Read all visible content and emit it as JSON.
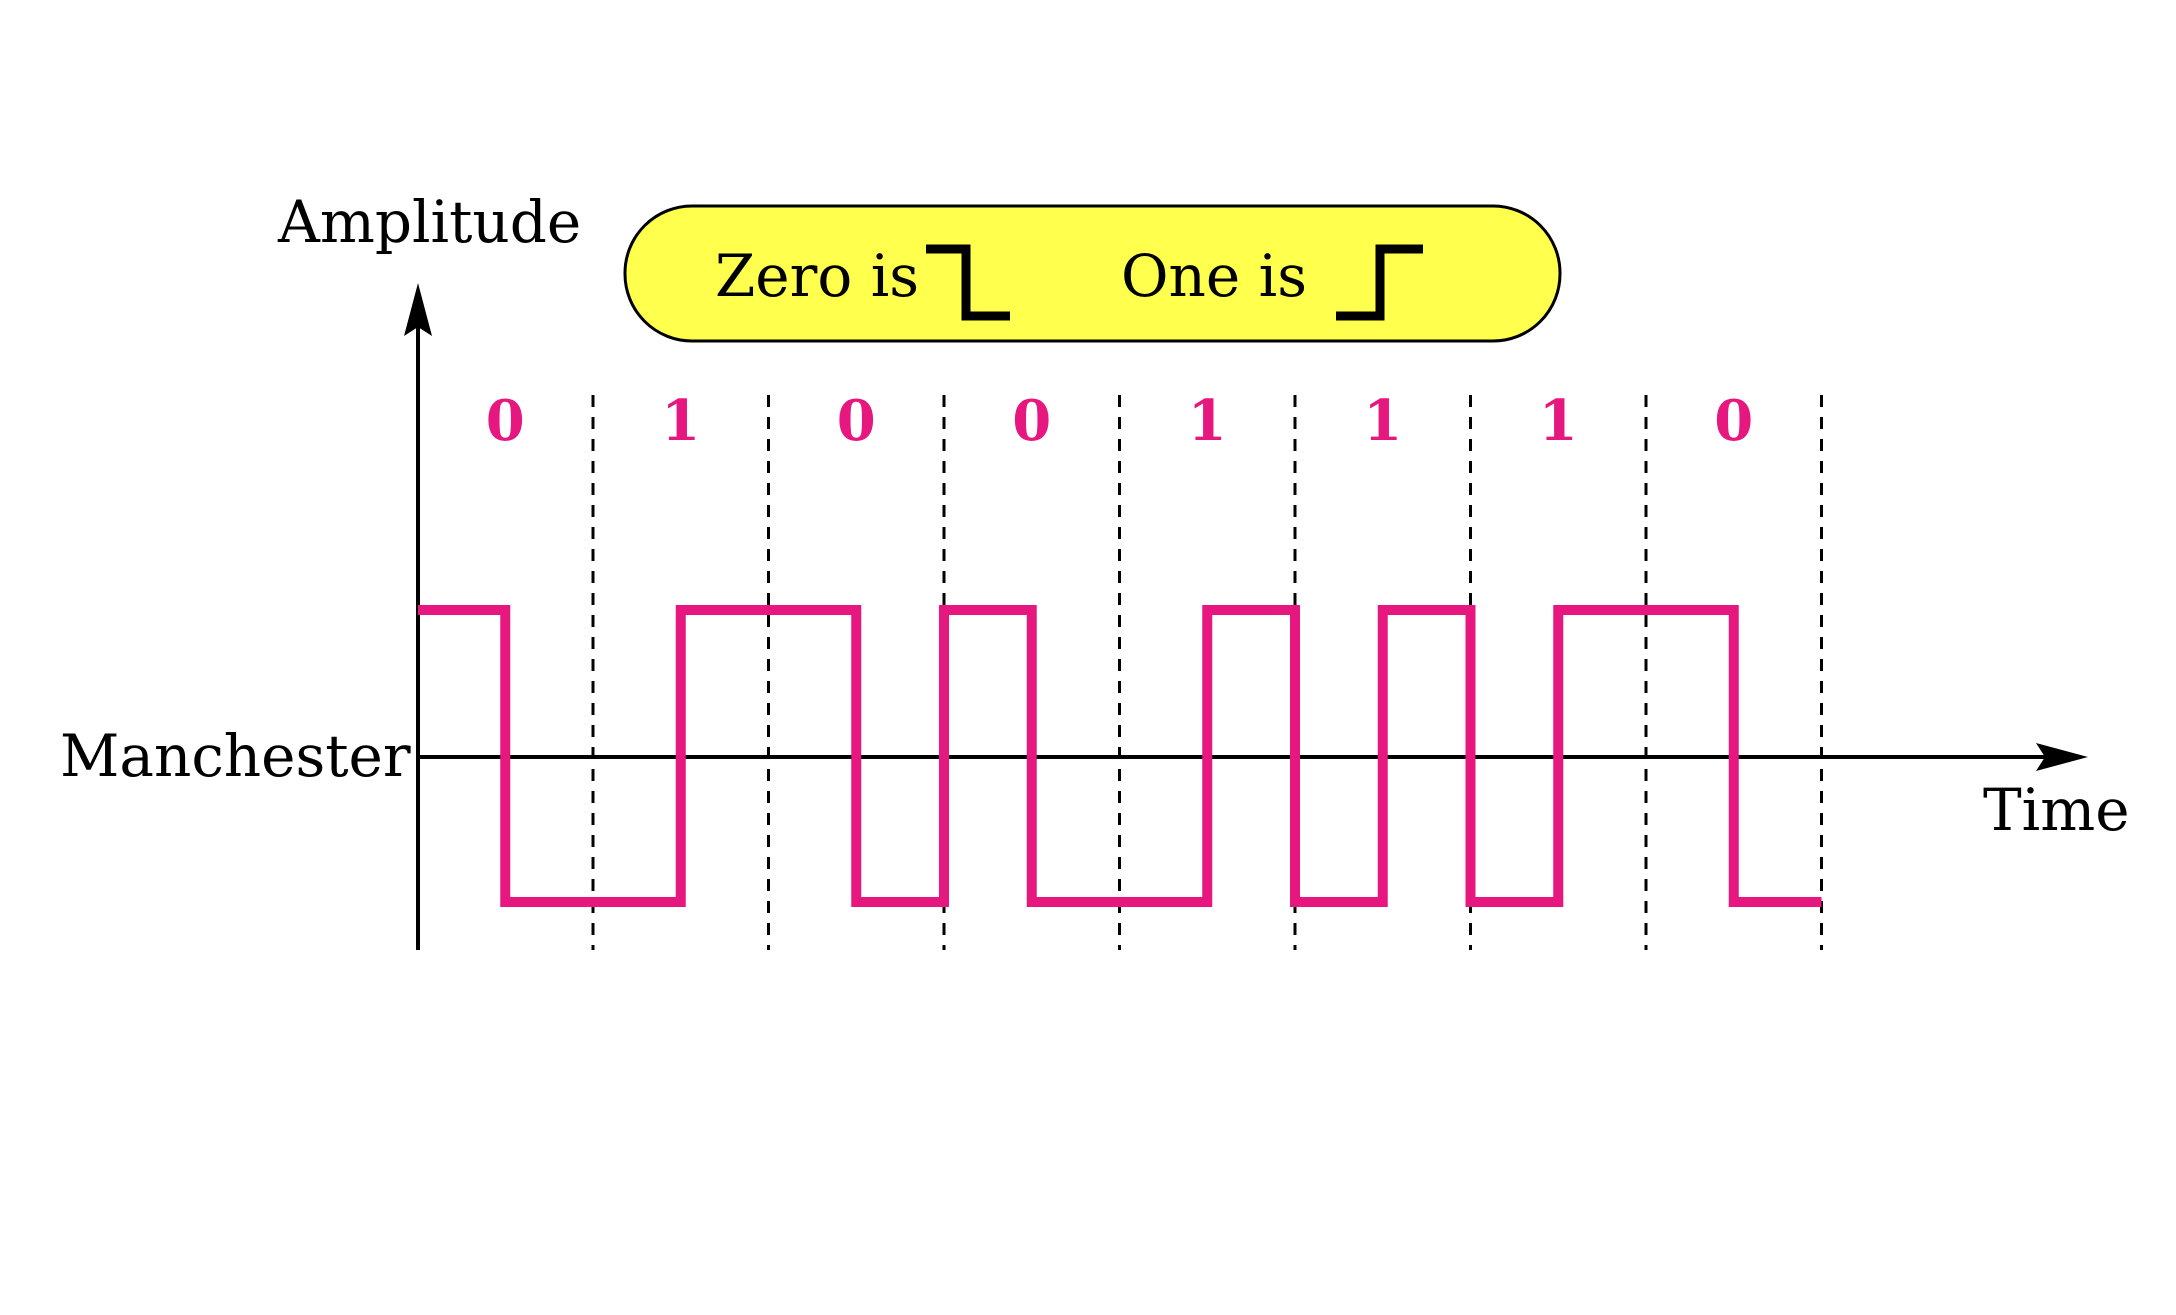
{
  "axis_labels": {
    "y": "Amplitude",
    "x": "Time",
    "row": "Manchester"
  },
  "legend": {
    "zero_text": "Zero is",
    "one_text": "One is",
    "zero_symbol": "high-to-low-transition-icon",
    "one_symbol": "low-to-high-transition-icon",
    "fill_color": "#ffff4d"
  },
  "encoding": {
    "name": "Manchester",
    "bits": [
      "0",
      "1",
      "0",
      "0",
      "1",
      "1",
      "1",
      "0"
    ],
    "signal_color": "#e6177f",
    "bit_label_color": "#e6177f"
  }
}
